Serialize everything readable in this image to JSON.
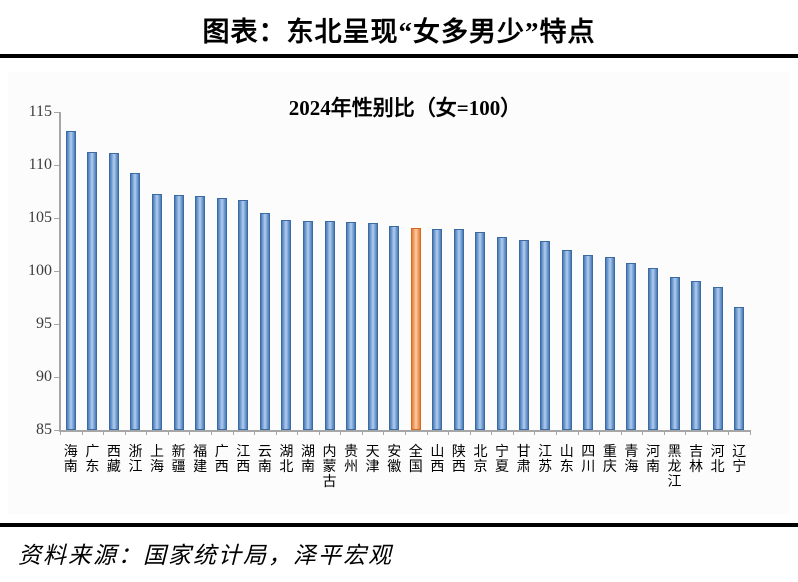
{
  "page": {
    "title": "图表：东北呈现“女多男少”特点",
    "source": "资料来源：国家统计局，泽平宏观"
  },
  "chart_data": {
    "type": "bar",
    "title": "2024年性别比（女=100）",
    "categories": [
      "海南",
      "广东",
      "西藏",
      "浙江",
      "上海",
      "新疆",
      "福建",
      "广西",
      "江西",
      "云南",
      "湖北",
      "湖南",
      "内蒙古",
      "贵州",
      "天津",
      "安徽",
      "全国",
      "山西",
      "陕西",
      "北京",
      "宁夏",
      "甘肃",
      "江苏",
      "山东",
      "四川",
      "重庆",
      "青海",
      "河南",
      "黑龙江",
      "吉林",
      "河北",
      "辽宁"
    ],
    "values": [
      113.2,
      111.2,
      111.1,
      109.2,
      107.3,
      107.2,
      107.1,
      106.9,
      106.7,
      105.5,
      104.8,
      104.7,
      104.7,
      104.6,
      104.5,
      104.2,
      104.1,
      104.0,
      104.0,
      103.7,
      103.2,
      102.9,
      102.8,
      102.0,
      101.5,
      101.3,
      100.8,
      100.3,
      99.4,
      99.1,
      98.5,
      96.6
    ],
    "highlight_category": "全国",
    "highlight_index": 16,
    "ylim": [
      85,
      115
    ],
    "yticks": [
      85,
      90,
      95,
      100,
      105,
      110,
      115
    ],
    "grid": false,
    "legend": "none",
    "bar_color_edge": "#3c6ba3",
    "bar_color_mid": "#b4cdea",
    "bar_color_main": "#6f9cd2",
    "highlight_color_edge": "#d2691e",
    "highlight_color_main": "#f0975c",
    "axis_color": "#a6a6a6",
    "tick_label_color": "#3d3d3d"
  }
}
